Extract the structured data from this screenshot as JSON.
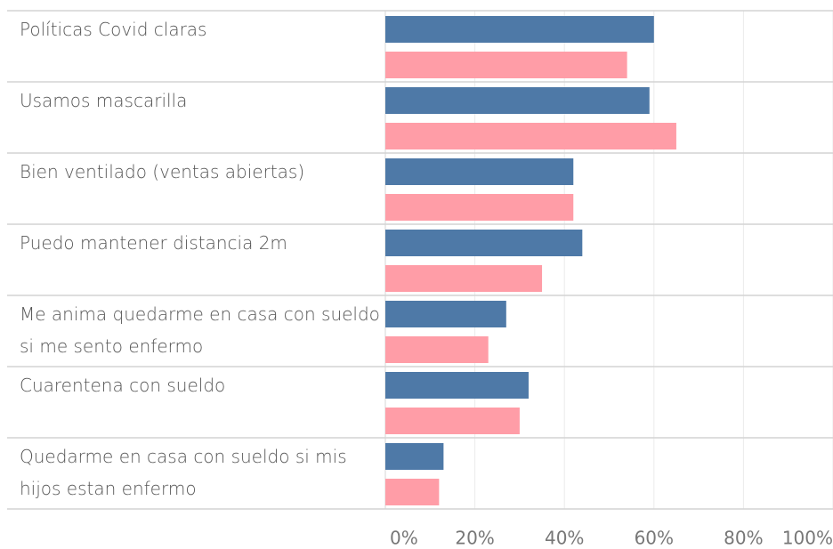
{
  "chart_data": {
    "type": "hbar",
    "categories": [
      "Políticas Covid claras",
      "Usamos mascarilla",
      "Bien ventilado (ventas abiertas)",
      "Puedo mantener distancia 2m",
      "Me anima quedarme en casa con sueldo si me sento enfermo",
      "Cuarentena con sueldo",
      "Quedarme en casa con sueldo si mis hijos estan enfermo"
    ],
    "series": [
      {
        "color": "#4e79a7",
        "values": [
          60,
          59,
          42,
          44,
          27,
          32,
          13
        ]
      },
      {
        "color": "#ff9da7",
        "values": [
          54,
          65,
          42,
          35,
          23,
          30,
          12
        ]
      }
    ],
    "xlim": [
      0,
      100
    ],
    "xticks": [
      {
        "value": 0,
        "label": "0%"
      },
      {
        "value": 20,
        "label": "20%"
      },
      {
        "value": 40,
        "label": "40%"
      },
      {
        "value": 60,
        "label": "60%"
      },
      {
        "value": 80,
        "label": "80%"
      },
      {
        "value": 100,
        "label": "100%"
      }
    ],
    "grid": true
  }
}
